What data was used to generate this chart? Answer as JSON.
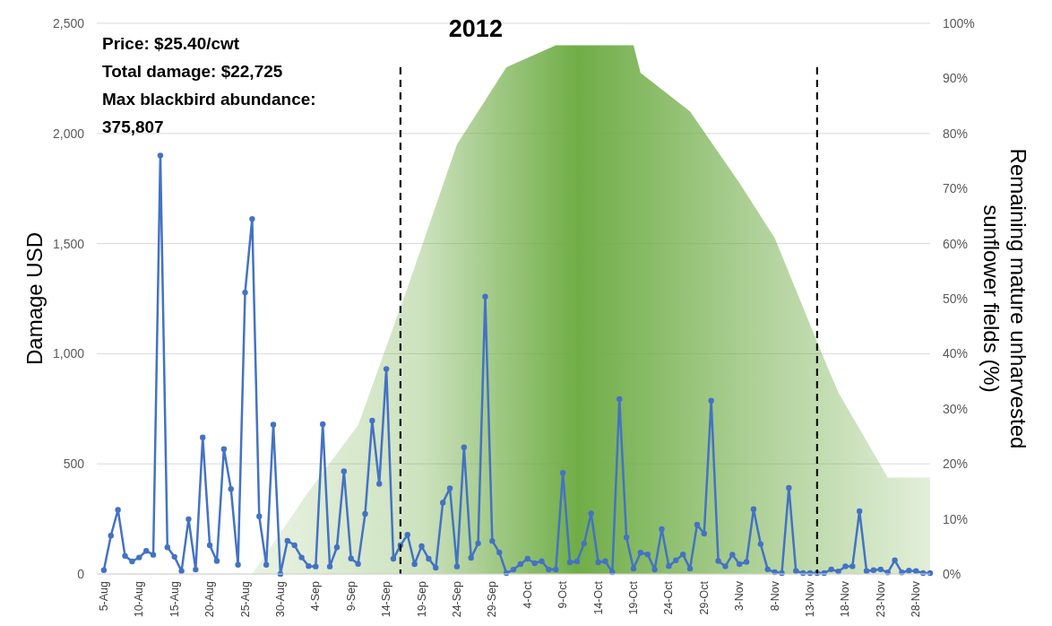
{
  "chart_data": {
    "type": "line",
    "title": "2012",
    "ylabel": "Damage USD",
    "y2label": "Remaining mature unharvested sunflower fields (%)",
    "annotations": [
      "Price: $25.40/cwt",
      "Total damage: $22,725",
      "Max blackbird abundance: 375,807"
    ],
    "x": [
      "--08-05",
      "--08-06",
      "--08-07",
      "--08-08",
      "--08-09",
      "--08-10",
      "--08-11",
      "--08-12",
      "--08-13",
      "--08-14",
      "--08-15",
      "--08-16",
      "--08-17",
      "--08-18",
      "--08-19",
      "--08-20",
      "--08-21",
      "--08-22",
      "--08-23",
      "--08-24",
      "--08-25",
      "--08-26",
      "--08-27",
      "--08-28",
      "--08-29",
      "--08-30",
      "--08-31",
      "--09-01",
      "--09-02",
      "--09-03",
      "--09-04",
      "--09-05",
      "--09-06",
      "--09-07",
      "--09-08",
      "--09-09",
      "--09-10",
      "--09-11",
      "--09-12",
      "--09-13",
      "--09-14",
      "--09-15",
      "--09-16",
      "--09-17",
      "--09-18",
      "--09-19",
      "--09-20",
      "--09-21",
      "--09-22",
      "--09-23",
      "--09-24",
      "--09-25",
      "--09-26",
      "--09-27",
      "--09-28",
      "--09-29",
      "--09-30",
      "--10-01",
      "--10-02",
      "--10-03",
      "--10-04",
      "--10-05",
      "--10-06",
      "--10-07",
      "--10-08",
      "--10-09",
      "--10-10",
      "--10-11",
      "--10-12",
      "--10-13",
      "--10-14",
      "--10-15",
      "--10-16",
      "--10-17",
      "--10-18",
      "--10-19",
      "--10-20",
      "--10-21",
      "--10-22",
      "--10-23",
      "--10-24",
      "--10-25",
      "--10-26",
      "--10-27",
      "--10-28",
      "--10-29",
      "--10-30",
      "--10-31",
      "--11-01",
      "--11-02",
      "--11-03",
      "--11-04",
      "--11-05",
      "--11-06",
      "--11-07",
      "--11-08",
      "--11-09",
      "--11-10",
      "--11-11",
      "--11-12",
      "--11-13",
      "--11-14",
      "--11-15",
      "--11-16",
      "--11-17",
      "--11-18",
      "--11-19",
      "--11-20",
      "--11-21",
      "--11-22",
      "--11-23",
      "--11-24",
      "--11-25",
      "--11-26",
      "--11-27",
      "--11-28",
      "--11-29",
      "--11-30"
    ],
    "series": [
      {
        "type": "area",
        "axis": "y2",
        "color": "#70ad47",
        "marker": "none",
        "x": [
          "--08-26",
          "--09-03",
          "--09-10",
          "--09-17",
          "--09-24",
          "--10-01",
          "--10-08",
          "--10-19",
          "--10-20",
          "--10-25",
          "--10-27",
          "--11-03",
          "--11-08",
          "--11-15",
          "--11-17",
          "--11-24",
          "--11-30"
        ],
        "values": [
          0,
          15,
          27,
          52,
          78,
          92,
          96,
          96,
          91,
          86,
          84,
          71,
          61,
          39,
          33,
          17.5,
          17.5
        ]
      },
      {
        "color": "#4472c4",
        "values": [
          17,
          174,
          291,
          82,
          57,
          75,
          105,
          87,
          1900,
          121,
          78,
          13,
          249,
          20,
          620,
          130,
          59,
          567,
          386,
          42,
          1278,
          1612,
          262,
          42,
          678,
          0,
          151,
          130,
          75,
          36,
          34,
          680,
          34,
          121,
          466,
          70,
          46,
          273,
          696,
          409,
          931,
          69,
          130,
          178,
          45,
          126,
          69,
          28,
          324,
          389,
          34,
          575,
          73,
          139,
          1259,
          150,
          98,
          4,
          20,
          45,
          69,
          49,
          58,
          20,
          20,
          459,
          53,
          57,
          138,
          275,
          53,
          58,
          8,
          794,
          166,
          24,
          97,
          89,
          20,
          204,
          36,
          62,
          89,
          24,
          224,
          183,
          787,
          59,
          35,
          88,
          45,
          55,
          294,
          136,
          21,
          8,
          4,
          391,
          13,
          4,
          4,
          4,
          4,
          21,
          11,
          35,
          35,
          285,
          13,
          17,
          21,
          7,
          62,
          7,
          15,
          13,
          4,
          4
        ]
      }
    ],
    "ref_lines": [
      {
        "axis": "x",
        "value": "--09-16",
        "line_style": "dashed",
        "color": "#000000"
      },
      {
        "axis": "x",
        "value": "--11-14",
        "line_style": "dashed",
        "color": "#000000"
      }
    ],
    "xlim": [
      "--08-04",
      "--11-30"
    ],
    "xticks": [
      {
        "value": "--08-05",
        "label": "5-Aug"
      },
      {
        "value": "--08-10",
        "label": "10-Aug"
      },
      {
        "value": "--08-15",
        "label": "15-Aug"
      },
      {
        "value": "--08-20",
        "label": "20-Aug"
      },
      {
        "value": "--08-25",
        "label": "25-Aug"
      },
      {
        "value": "--08-30",
        "label": "30-Aug"
      },
      {
        "value": "--09-04",
        "label": "4-Sep"
      },
      {
        "value": "--09-09",
        "label": "9-Sep"
      },
      {
        "value": "--09-14",
        "label": "14-Sep"
      },
      {
        "value": "--09-19",
        "label": "19-Sep"
      },
      {
        "value": "--09-24",
        "label": "24-Sep"
      },
      {
        "value": "--09-29",
        "label": "29-Sep"
      },
      {
        "value": "--10-04",
        "label": "4-Oct"
      },
      {
        "value": "--10-09",
        "label": "9-Oct"
      },
      {
        "value": "--10-14",
        "label": "14-Oct"
      },
      {
        "value": "--10-19",
        "label": "19-Oct"
      },
      {
        "value": "--10-24",
        "label": "24-Oct"
      },
      {
        "value": "--10-29",
        "label": "29-Oct"
      },
      {
        "value": "--11-03",
        "label": "3-Nov"
      },
      {
        "value": "--11-08",
        "label": "8-Nov"
      },
      {
        "value": "--11-13",
        "label": "13-Nov"
      },
      {
        "value": "--11-18",
        "label": "18-Nov"
      },
      {
        "value": "--11-23",
        "label": "23-Nov"
      },
      {
        "value": "--11-28",
        "label": "28-Nov"
      }
    ],
    "ylim": [
      0,
      2500
    ],
    "yticks": [
      0,
      500,
      {
        "value": 1000,
        "label": "1,000"
      },
      {
        "value": 1500,
        "label": "1,500"
      },
      {
        "value": 2000,
        "label": "2,000"
      },
      {
        "value": 2500,
        "label": "2,500"
      }
    ],
    "y2lim": [
      0,
      100
    ],
    "y2ticks": [
      {
        "value": 0,
        "label": "0%"
      },
      {
        "value": 10,
        "label": "10%"
      },
      {
        "value": 20,
        "label": "20%"
      },
      {
        "value": 30,
        "label": "30%"
      },
      {
        "value": 40,
        "label": "40%"
      },
      {
        "value": 50,
        "label": "50%"
      },
      {
        "value": 60,
        "label": "60%"
      },
      {
        "value": 70,
        "label": "70%"
      },
      {
        "value": 80,
        "label": "80%"
      },
      {
        "value": 90,
        "label": "90%"
      },
      {
        "value": 100,
        "label": "100%"
      }
    ],
    "grid": "y",
    "marker": "circle",
    "line_style": "solid"
  }
}
